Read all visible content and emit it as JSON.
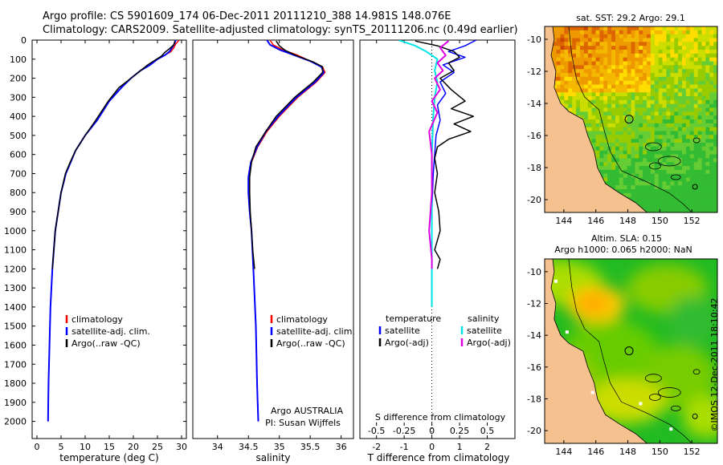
{
  "header": {
    "line1": "Argo profile: CS 5901609_174 06-Dec-2011 20111210_388 14.981S 148.076E",
    "line2": "Climatology: CARS2009. Satellite-adjusted climatology: synTS_20111206.nc (0.49d earlier)"
  },
  "colors": {
    "climatology": "#ff0000",
    "satellite": "#0000ff",
    "argo": "#000000",
    "sal_satellite": "#00e5e5",
    "sal_argo": "#e000e0",
    "land": "#f5c28f",
    "ocean_green": "#33cc33"
  },
  "depth_axis": {
    "ticks": [
      0,
      100,
      200,
      300,
      400,
      500,
      600,
      700,
      800,
      900,
      1000,
      1100,
      1200,
      1300,
      1400,
      1500,
      1600,
      1700,
      1800,
      1900,
      2000
    ],
    "range": [
      0,
      2090
    ]
  },
  "chart_data": [
    {
      "type": "line",
      "xlabel": "temperature (deg C)",
      "xlim": [
        -1,
        31
      ],
      "xticks": [
        0,
        5,
        10,
        15,
        20,
        25,
        30
      ],
      "legend": [
        "climatology",
        "satellite-adj. clim.",
        "Argo(..raw -QC)"
      ],
      "series": [
        {
          "name": "climatology",
          "x": [
            29.5,
            28.8,
            28.4,
            27.8,
            26.5,
            25.0,
            23.5,
            21.5,
            19.5,
            17.5,
            15.0,
            12.5,
            10.0,
            8.0,
            7.0,
            6.0,
            5.0,
            4.4,
            3.8,
            3.2,
            2.8,
            2.6,
            2.4,
            2.3
          ],
          "y": [
            0,
            20,
            40,
            60,
            80,
            100,
            130,
            160,
            200,
            250,
            320,
            420,
            500,
            580,
            640,
            700,
            800,
            900,
            1000,
            1200,
            1400,
            1600,
            1800,
            2000
          ]
        },
        {
          "name": "satellite-adj. clim.",
          "x": [
            28.8,
            28.5,
            28.0,
            27.5,
            26.5,
            25.0,
            23.5,
            21.5,
            19.5,
            17.5,
            15.0,
            12.5,
            10.0,
            8.0,
            7.0,
            6.0,
            5.0,
            4.4,
            3.8,
            3.2,
            2.8,
            2.6,
            2.4,
            2.3
          ],
          "y": [
            0,
            20,
            40,
            60,
            80,
            100,
            130,
            160,
            200,
            250,
            320,
            420,
            500,
            580,
            640,
            700,
            800,
            900,
            1000,
            1200,
            1400,
            1600,
            1800,
            2000
          ]
        },
        {
          "name": "Argo(..raw -QC)",
          "x": [
            28.6,
            28.4,
            27.5,
            26.5,
            25.8,
            24.5,
            23.0,
            21.5,
            19.5,
            17.0,
            14.8,
            12.2,
            10.0,
            8.0,
            6.9,
            5.9,
            5.0,
            4.4,
            3.8,
            3.2
          ],
          "y": [
            5,
            25,
            45,
            65,
            85,
            105,
            130,
            160,
            200,
            250,
            320,
            420,
            500,
            580,
            640,
            700,
            800,
            900,
            1000,
            1200
          ]
        }
      ]
    },
    {
      "type": "line",
      "xlabel": "salinity",
      "xlim": [
        33.6,
        36.2
      ],
      "xticks": [
        34,
        34.5,
        35,
        35.5,
        36
      ],
      "xticklabels": [
        "34",
        "34.5",
        "35",
        "35.5",
        "36"
      ],
      "legend": [
        "climatology",
        "satellite-adj. clim.",
        "Argo(..raw -QC)"
      ],
      "annotation": [
        "Argo AUSTRALIA",
        "PI: Susan Wijffels"
      ],
      "series": [
        {
          "name": "climatology",
          "x": [
            34.85,
            34.9,
            35.05,
            35.3,
            35.5,
            35.7,
            35.74,
            35.6,
            35.3,
            35.0,
            34.8,
            34.65,
            34.55,
            34.5,
            34.5,
            34.52,
            34.55,
            34.58,
            34.62,
            34.64,
            34.66
          ],
          "y": [
            0,
            25,
            50,
            80,
            110,
            140,
            170,
            220,
            300,
            400,
            480,
            560,
            640,
            720,
            800,
            900,
            1000,
            1200,
            1500,
            1800,
            2000
          ]
        },
        {
          "name": "satellite-adj. clim.",
          "x": [
            34.8,
            34.85,
            35.0,
            35.25,
            35.5,
            35.68,
            35.72,
            35.58,
            35.28,
            34.98,
            34.78,
            34.64,
            34.54,
            34.5,
            34.5,
            34.52,
            34.55,
            34.58,
            34.62,
            34.64,
            34.66
          ],
          "y": [
            0,
            25,
            50,
            80,
            110,
            140,
            170,
            220,
            300,
            400,
            480,
            560,
            640,
            720,
            800,
            900,
            1000,
            1200,
            1500,
            1800,
            2000
          ]
        },
        {
          "name": "Argo(..raw -QC)",
          "x": [
            34.95,
            35.0,
            35.1,
            35.3,
            35.55,
            35.7,
            35.7,
            35.55,
            35.25,
            34.95,
            34.78,
            34.62,
            34.55,
            34.52,
            34.52,
            34.53,
            34.55,
            34.57,
            34.6
          ],
          "y": [
            5,
            30,
            55,
            85,
            115,
            140,
            170,
            220,
            300,
            400,
            480,
            560,
            640,
            720,
            800,
            900,
            1000,
            1100,
            1200
          ]
        }
      ]
    },
    {
      "type": "line",
      "xlabel": "T difference from climatology",
      "xlabel_top": "S difference from climatology",
      "xlim": [
        -2.6,
        3.0
      ],
      "xticks": [
        -2,
        -1,
        0,
        1,
        2
      ],
      "top_ticks": [
        -0.5,
        -0.25,
        0,
        0.25,
        0.5
      ],
      "top_ticklabels": [
        "-0.5",
        "-0.25",
        "0",
        "0.25",
        "0.5"
      ],
      "legend_left_title": "temperature",
      "legend_right_title": "salinity",
      "legend_left": [
        "satellite",
        "Argo(-adj)"
      ],
      "legend_right": [
        "satellite",
        "Argo(-adj)"
      ],
      "series": [
        {
          "name": "temperature satellite",
          "x": [
            1.6,
            1.2,
            0.6,
            1.2,
            0.4,
            0.8,
            0.3,
            0.5,
            0.2,
            0.3,
            0.15,
            0.1,
            0.05,
            0.0,
            0.0,
            0.0
          ],
          "y": [
            0,
            30,
            60,
            90,
            130,
            170,
            220,
            280,
            340,
            420,
            500,
            600,
            700,
            900,
            1200,
            1400
          ]
        },
        {
          "name": "temperature Argo(-adj)",
          "x": [
            -0.6,
            0.2,
            0.8,
            1.0,
            0.6,
            0.8,
            0.3,
            0.7,
            1.2,
            0.7,
            1.5,
            0.8,
            1.4,
            0.6,
            0.2,
            0.1,
            0.2,
            0.1,
            0.25,
            0.3,
            0.1,
            0.3,
            0.2
          ],
          "y": [
            5,
            30,
            60,
            90,
            120,
            160,
            200,
            260,
            320,
            360,
            400,
            440,
            480,
            520,
            560,
            620,
            700,
            800,
            900,
            1000,
            1100,
            1150,
            1200
          ]
        },
        {
          "name": "salinity satellite",
          "x": [
            -1.2,
            -0.6,
            -0.2,
            0.2,
            0.1,
            0.2,
            0.1,
            0.05,
            0.0,
            0.0,
            0.0
          ],
          "y": [
            0,
            30,
            60,
            100,
            160,
            220,
            300,
            400,
            600,
            900,
            1400
          ]
        },
        {
          "name": "salinity Argo(-adj)",
          "x": [
            0.6,
            0.3,
            0.5,
            0.2,
            0.4,
            0.1,
            0.3,
            0.0,
            0.2,
            -0.1,
            0.0,
            0.0,
            -0.1,
            0.0,
            0.0
          ],
          "y": [
            5,
            40,
            80,
            120,
            160,
            200,
            260,
            320,
            380,
            480,
            600,
            800,
            1000,
            1150,
            1200
          ]
        }
      ]
    },
    {
      "type": "heatmap",
      "title": "sat. SST: 29.2  Argo: 29.1",
      "xticks": [
        144,
        146,
        148,
        150,
        152
      ],
      "yticks": [
        -10,
        -12,
        -14,
        -16,
        -18,
        -20
      ],
      "xlim": [
        142.8,
        153.6
      ],
      "ylim": [
        -20.8,
        -9.2
      ],
      "marker": {
        "lon": 148.076,
        "lat": -14.981
      }
    },
    {
      "type": "heatmap",
      "title_line1": "Altim. SLA: 0.15",
      "title_line2": "Argo h1000: 0.065 h2000: NaN",
      "xticks": [
        144,
        146,
        148,
        150,
        152
      ],
      "yticks": [
        -10,
        -12,
        -14,
        -16,
        -18,
        -20
      ],
      "xlim": [
        142.8,
        153.6
      ],
      "ylim": [
        -20.8,
        -9.2
      ],
      "marker": {
        "lon": 148.076,
        "lat": -14.981
      }
    }
  ],
  "credit": "©IMOS 12-Dec-2011 18:10:42"
}
